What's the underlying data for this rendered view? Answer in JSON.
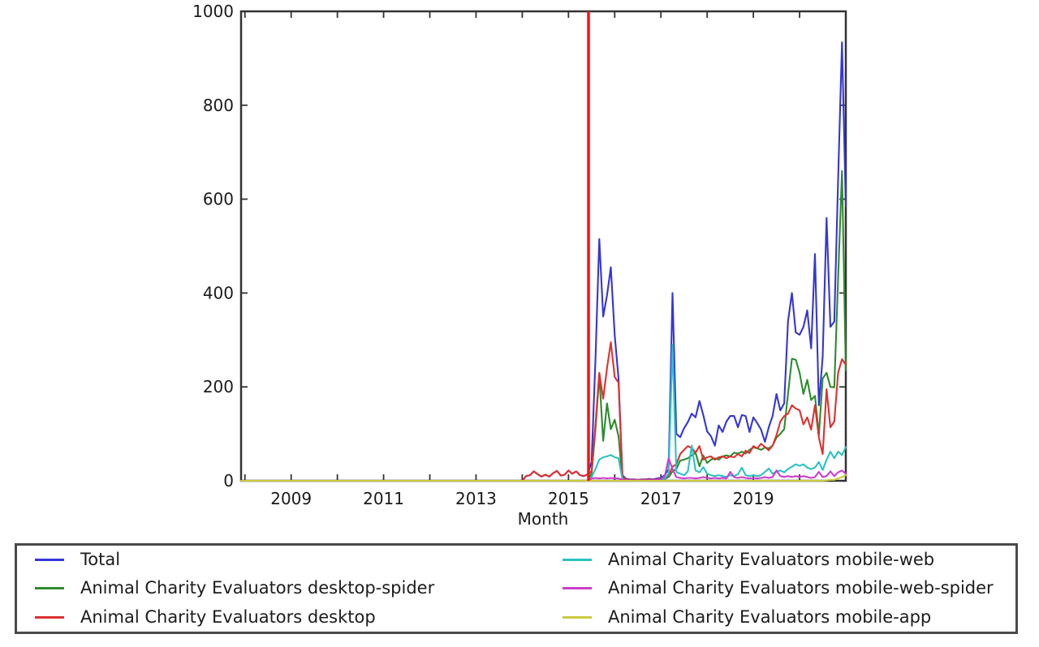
{
  "figure": {
    "xlabel": "Month",
    "background_color": "#ffffff",
    "axis_color": "#333333",
    "tick_label_color": "#1a1a1a",
    "legend_border_color": "#4a4a4a"
  },
  "chart_data": {
    "type": "line",
    "title": "",
    "xlabel": "Month",
    "ylabel": "",
    "x_frequency": "monthly",
    "x_start": "2007-12",
    "x_end": "2021-01",
    "n_months": 158,
    "ylim": [
      0,
      1000
    ],
    "yticks": [
      0,
      200,
      400,
      600,
      800,
      1000
    ],
    "xticks": [
      {
        "label": "2009",
        "month_index": 13
      },
      {
        "label": "2011",
        "month_index": 37
      },
      {
        "label": "2013",
        "month_index": 61
      },
      {
        "label": "2015",
        "month_index": 85
      },
      {
        "label": "2017",
        "month_index": 109
      },
      {
        "label": "2019",
        "month_index": 133
      }
    ],
    "minor_tick_every_months": 12,
    "grid": false,
    "legend_position": "below",
    "vline": {
      "month_index": 90.2,
      "color": "#ff1010",
      "approx_date": "2015-06"
    },
    "series": [
      {
        "name": "Total",
        "color": "#3535d8",
        "values": [
          0,
          0,
          0,
          0,
          0,
          0,
          0,
          0,
          0,
          0,
          0,
          0,
          0,
          0,
          0,
          0,
          0,
          0,
          0,
          0,
          0,
          0,
          0,
          0,
          0,
          0,
          0,
          0,
          0,
          0,
          0,
          0,
          0,
          0,
          0,
          0,
          0,
          0,
          0,
          0,
          0,
          0,
          0,
          0,
          0,
          0,
          0,
          0,
          0,
          0,
          0,
          0,
          0,
          0,
          0,
          0,
          0,
          0,
          0,
          0,
          0,
          0,
          0,
          0,
          0,
          0,
          0,
          0,
          0,
          0,
          0,
          0,
          0,
          0,
          10,
          12,
          20,
          14,
          9,
          13,
          9,
          16,
          21,
          11,
          13,
          22,
          15,
          20,
          12,
          10,
          14,
          40,
          260,
          515,
          350,
          395,
          455,
          310,
          218,
          12,
          4,
          3,
          3,
          2,
          3,
          3,
          4,
          3,
          5,
          6,
          12,
          25,
          400,
          100,
          93,
          112,
          125,
          143,
          135,
          170,
          140,
          105,
          95,
          75,
          118,
          104,
          126,
          138,
          138,
          114,
          140,
          138,
          104,
          135,
          123,
          109,
          83,
          114,
          138,
          185,
          150,
          165,
          340,
          400,
          316,
          311,
          328,
          363,
          282,
          483,
          161,
          264,
          560,
          328,
          339,
          640,
          934,
          585
        ]
      },
      {
        "name": "Animal Charity Evaluators desktop-spider",
        "color": "#2e8b2e",
        "values": [
          0,
          0,
          0,
          0,
          0,
          0,
          0,
          0,
          0,
          0,
          0,
          0,
          0,
          0,
          0,
          0,
          0,
          0,
          0,
          0,
          0,
          0,
          0,
          0,
          0,
          0,
          0,
          0,
          0,
          0,
          0,
          0,
          0,
          0,
          0,
          0,
          0,
          0,
          0,
          0,
          0,
          0,
          0,
          0,
          0,
          0,
          0,
          0,
          0,
          0,
          0,
          0,
          0,
          0,
          0,
          0,
          0,
          0,
          0,
          0,
          0,
          0,
          0,
          0,
          0,
          0,
          0,
          0,
          0,
          0,
          0,
          0,
          0,
          0,
          0,
          0,
          0,
          0,
          0,
          0,
          0,
          0,
          0,
          0,
          0,
          0,
          0,
          0,
          0,
          0,
          0,
          15,
          110,
          225,
          85,
          165,
          110,
          130,
          95,
          5,
          2,
          1,
          1,
          1,
          1,
          1,
          2,
          1,
          2,
          3,
          4,
          8,
          20,
          25,
          43,
          45,
          48,
          54,
          60,
          31,
          54,
          38,
          45,
          48,
          45,
          52,
          54,
          52,
          60,
          58,
          62,
          58,
          66,
          71,
          69,
          66,
          71,
          69,
          75,
          92,
          100,
          110,
          185,
          260,
          258,
          230,
          185,
          215,
          172,
          181,
          97,
          218,
          230,
          200,
          199,
          430,
          660,
          235
        ]
      },
      {
        "name": "Animal Charity Evaluators desktop",
        "color": "#de3131",
        "values": [
          0,
          0,
          0,
          0,
          0,
          0,
          0,
          0,
          0,
          0,
          0,
          0,
          0,
          0,
          0,
          0,
          0,
          0,
          0,
          0,
          0,
          0,
          0,
          0,
          0,
          0,
          0,
          0,
          0,
          0,
          0,
          0,
          0,
          0,
          0,
          0,
          0,
          0,
          0,
          0,
          0,
          0,
          0,
          0,
          0,
          0,
          0,
          0,
          0,
          0,
          0,
          0,
          0,
          0,
          0,
          0,
          0,
          0,
          0,
          0,
          0,
          0,
          0,
          0,
          0,
          0,
          0,
          0,
          0,
          0,
          0,
          0,
          0,
          0,
          10,
          12,
          20,
          14,
          9,
          13,
          9,
          16,
          21,
          11,
          13,
          22,
          15,
          20,
          12,
          10,
          14,
          20,
          120,
          230,
          175,
          240,
          295,
          221,
          209,
          8,
          3,
          2,
          2,
          2,
          2,
          2,
          3,
          2,
          3,
          4,
          5,
          12,
          30,
          35,
          57,
          66,
          74,
          70,
          60,
          74,
          45,
          50,
          52,
          45,
          50,
          52,
          48,
          52,
          50,
          57,
          52,
          64,
          59,
          74,
          69,
          79,
          72,
          65,
          75,
          97,
          126,
          138,
          143,
          161,
          154,
          150,
          120,
          135,
          109,
          161,
          92,
          57,
          195,
          114,
          126,
          230,
          259,
          247
        ]
      },
      {
        "name": "Animal Charity Evaluators mobile-web",
        "color": "#29c3c3",
        "values": [
          0,
          0,
          0,
          0,
          0,
          0,
          0,
          0,
          0,
          0,
          0,
          0,
          0,
          0,
          0,
          0,
          0,
          0,
          0,
          0,
          0,
          0,
          0,
          0,
          0,
          0,
          0,
          0,
          0,
          0,
          0,
          0,
          0,
          0,
          0,
          0,
          0,
          0,
          0,
          0,
          0,
          0,
          0,
          0,
          0,
          0,
          0,
          0,
          0,
          0,
          0,
          0,
          0,
          0,
          0,
          0,
          0,
          0,
          0,
          0,
          0,
          0,
          0,
          0,
          0,
          0,
          0,
          0,
          0,
          0,
          0,
          0,
          0,
          0,
          0,
          0,
          0,
          0,
          0,
          0,
          0,
          0,
          0,
          0,
          0,
          0,
          0,
          0,
          0,
          0,
          0,
          8,
          25,
          45,
          50,
          52,
          55,
          50,
          48,
          3,
          1,
          1,
          1,
          1,
          1,
          1,
          1,
          1,
          2,
          2,
          5,
          15,
          290,
          19,
          15,
          12,
          20,
          75,
          22,
          18,
          29,
          15,
          12,
          10,
          12,
          10,
          8,
          12,
          10,
          14,
          28,
          12,
          10,
          12,
          10,
          12,
          19,
          26,
          15,
          20,
          22,
          18,
          25,
          30,
          35,
          32,
          35,
          28,
          25,
          28,
          40,
          23,
          45,
          62,
          48,
          62,
          55,
          72
        ]
      },
      {
        "name": "Animal Charity Evaluators mobile-web-spider",
        "color": "#cc3ecc",
        "values": [
          0,
          0,
          0,
          0,
          0,
          0,
          0,
          0,
          0,
          0,
          0,
          0,
          0,
          0,
          0,
          0,
          0,
          0,
          0,
          0,
          0,
          0,
          0,
          0,
          0,
          0,
          0,
          0,
          0,
          0,
          0,
          0,
          0,
          0,
          0,
          0,
          0,
          0,
          0,
          0,
          0,
          0,
          0,
          0,
          0,
          0,
          0,
          0,
          0,
          0,
          0,
          0,
          0,
          0,
          0,
          0,
          0,
          0,
          0,
          0,
          0,
          0,
          0,
          0,
          0,
          0,
          0,
          0,
          0,
          0,
          0,
          0,
          0,
          0,
          0,
          0,
          0,
          0,
          0,
          0,
          0,
          0,
          0,
          0,
          0,
          0,
          0,
          0,
          0,
          0,
          0,
          5,
          6,
          5,
          6,
          5,
          6,
          5,
          5,
          2,
          1,
          1,
          1,
          1,
          1,
          1,
          1,
          1,
          2,
          3,
          10,
          48,
          25,
          8,
          6,
          5,
          6,
          6,
          5,
          6,
          8,
          6,
          5,
          6,
          5,
          6,
          5,
          19,
          8,
          6,
          8,
          6,
          5,
          6,
          5,
          6,
          8,
          6,
          8,
          22,
          10,
          8,
          10,
          8,
          10,
          8,
          10,
          8,
          6,
          8,
          19,
          8,
          10,
          20,
          10,
          18,
          22,
          15
        ]
      },
      {
        "name": "Animal Charity Evaluators mobile-app",
        "color": "#cbcb3f",
        "values": [
          0,
          0,
          0,
          0,
          0,
          0,
          0,
          0,
          0,
          0,
          0,
          0,
          0,
          0,
          0,
          0,
          0,
          0,
          0,
          0,
          0,
          0,
          0,
          0,
          0,
          0,
          0,
          0,
          0,
          0,
          0,
          0,
          0,
          0,
          0,
          0,
          0,
          0,
          0,
          0,
          0,
          0,
          0,
          0,
          0,
          0,
          0,
          0,
          0,
          0,
          0,
          0,
          0,
          0,
          0,
          0,
          0,
          0,
          0,
          0,
          0,
          0,
          0,
          0,
          0,
          0,
          0,
          0,
          0,
          0,
          0,
          0,
          0,
          0,
          0,
          0,
          0,
          0,
          0,
          0,
          0,
          0,
          0,
          0,
          0,
          0,
          0,
          0,
          0,
          0,
          0,
          0,
          0,
          0,
          0,
          0,
          0,
          0,
          0,
          0,
          0,
          0,
          0,
          0,
          0,
          0,
          0,
          0,
          0,
          0,
          0,
          0,
          0,
          0,
          0,
          0,
          0,
          0,
          0,
          0,
          0,
          0,
          0,
          0,
          0,
          0,
          0,
          0,
          0,
          0,
          0,
          0,
          0,
          0,
          0,
          0,
          0,
          0,
          0,
          0,
          0,
          0,
          0,
          0,
          0,
          0,
          0,
          0,
          0,
          0,
          0,
          0,
          1,
          2,
          2,
          5,
          8,
          12
        ]
      }
    ]
  }
}
